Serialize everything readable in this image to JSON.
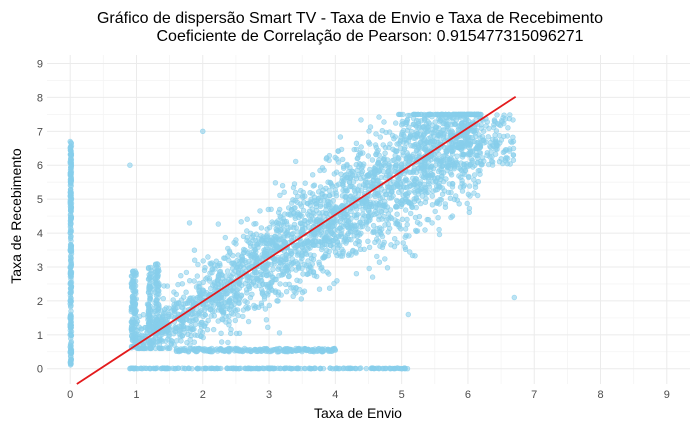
{
  "chart_data": {
    "type": "scatter",
    "title": "Gráfico de dispersão Smart TV - Taxa de Envio e Taxa de Recebimento",
    "subtitle": "Coeficiente de Correlação de Pearson: 0.915477315096271",
    "xlabel": "Taxa de Envio",
    "ylabel": "Taxa de Recebimento",
    "xlim": [
      -0.35,
      9.35
    ],
    "ylim": [
      -0.45,
      9.25
    ],
    "x_ticks": [
      0,
      1,
      2,
      3,
      4,
      5,
      6,
      7,
      8,
      9
    ],
    "y_ticks": [
      0,
      1,
      2,
      3,
      4,
      5,
      6,
      7,
      8,
      9
    ],
    "grid": true,
    "legend": "none",
    "series": [
      {
        "kind": "scatter",
        "color": "#87ceeb",
        "clusters": [
          {
            "region": "main diagonal band",
            "x_range": [
              1.0,
              6.2
            ],
            "y_range": [
              0.6,
              7.5
            ]
          },
          {
            "region": "vertical strip at x=0",
            "x_range": [
              0.0,
              0.02
            ],
            "y_range": [
              0.0,
              6.7
            ]
          },
          {
            "region": "horizontal strip at y=0",
            "x_range": [
              0.9,
              5.1
            ],
            "y_range": [
              0.0,
              0.02
            ]
          },
          {
            "region": "horizontal strip at y≈0.55",
            "x_range": [
              1.6,
              4.0
            ],
            "y_range": [
              0.5,
              0.6
            ]
          },
          {
            "region": "upper-right shelf",
            "x_range": [
              5.0,
              6.7
            ],
            "y_range": [
              6.0,
              7.5
            ]
          }
        ],
        "sample_points": [
          [
            0.0,
            0.5
          ],
          [
            0.0,
            1.0
          ],
          [
            0.0,
            1.5
          ],
          [
            0.0,
            2.0
          ],
          [
            0.0,
            2.5
          ],
          [
            0.0,
            3.0
          ],
          [
            0.0,
            3.5
          ],
          [
            0.0,
            4.0
          ],
          [
            0.0,
            5.2
          ],
          [
            0.0,
            6.1
          ],
          [
            0.0,
            6.7
          ],
          [
            0.9,
            0.0
          ],
          [
            2.0,
            0.0
          ],
          [
            3.0,
            0.0
          ],
          [
            4.0,
            0.0
          ],
          [
            5.0,
            0.0
          ],
          [
            1.6,
            0.55
          ],
          [
            2.5,
            0.55
          ],
          [
            3.5,
            0.55
          ],
          [
            4.0,
            0.55
          ],
          [
            0.95,
            1.0
          ],
          [
            0.95,
            2.0
          ],
          [
            0.95,
            2.8
          ],
          [
            0.9,
            6.0
          ],
          [
            1.5,
            1.3
          ],
          [
            2.0,
            2.0
          ],
          [
            2.5,
            2.6
          ],
          [
            3.0,
            3.3
          ],
          [
            3.5,
            4.0
          ],
          [
            4.0,
            4.6
          ],
          [
            4.5,
            5.2
          ],
          [
            5.0,
            5.8
          ],
          [
            5.5,
            6.5
          ],
          [
            6.0,
            7.1
          ],
          [
            2.0,
            7.0
          ],
          [
            1.8,
            4.3
          ],
          [
            5.1,
            1.6
          ],
          [
            6.7,
            2.1
          ],
          [
            6.6,
            6.2
          ],
          [
            6.4,
            7.3
          ]
        ]
      },
      {
        "kind": "regression-line",
        "color": "#e31a1c",
        "points": [
          [
            0.1,
            -0.45
          ],
          [
            6.72,
            8.02
          ]
        ]
      }
    ]
  }
}
